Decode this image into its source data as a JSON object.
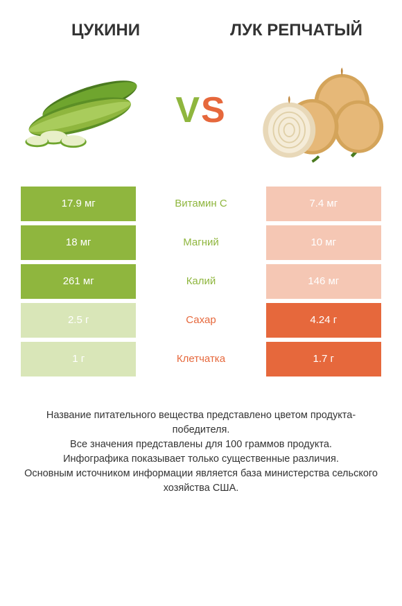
{
  "header": {
    "left_title": "ЦУКИНИ",
    "right_title": "ЛУК РЕПЧАТЫЙ"
  },
  "vs": {
    "v": "V",
    "s": "S"
  },
  "colors": {
    "left": "#8fb63e",
    "right": "#e6683c",
    "left_faded": "#d9e6b8",
    "right_faded": "#f5c7b4",
    "mid_text_left": "#8fb63e",
    "mid_text_right": "#e6683c",
    "text": "#333333",
    "bg": "#ffffff"
  },
  "table": {
    "rows": [
      {
        "left": "17.9 мг",
        "mid": "Витамин C",
        "right": "7.4 мг",
        "winner": "left"
      },
      {
        "left": "18 мг",
        "mid": "Магний",
        "right": "10 мг",
        "winner": "left"
      },
      {
        "left": "261 мг",
        "mid": "Калий",
        "right": "146 мг",
        "winner": "left"
      },
      {
        "left": "2.5 г",
        "mid": "Сахар",
        "right": "4.24 г",
        "winner": "right"
      },
      {
        "left": "1 г",
        "mid": "Клетчатка",
        "right": "1.7 г",
        "winner": "right"
      }
    ]
  },
  "footer": {
    "line1": "Название питательного вещества представлено цветом продукта-победителя.",
    "line2": "Все значения представлены для 100 граммов продукта.",
    "line3": "Инфографика показывает только существенные различия.",
    "line4": "Основным источником информации является база министерства сельского хозяйства США."
  }
}
